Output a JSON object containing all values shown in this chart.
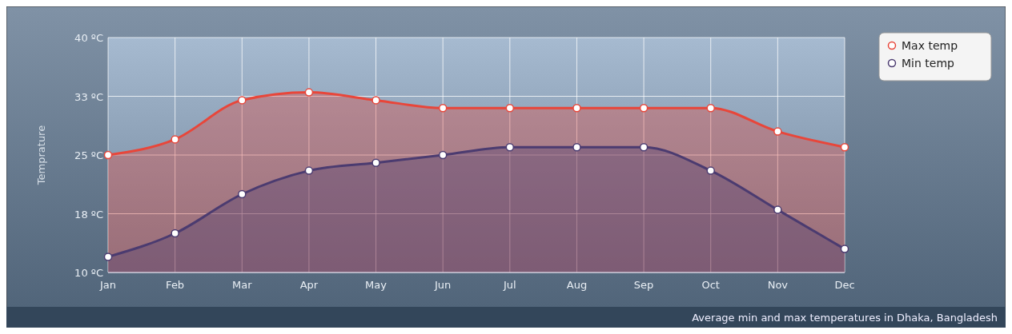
{
  "chart_data": {
    "type": "area",
    "ylabel": "Temprature",
    "categories": [
      "Jan",
      "Feb",
      "Mar",
      "Apr",
      "May",
      "Jun",
      "Jul",
      "Aug",
      "Sep",
      "Oct",
      "Nov",
      "Dec"
    ],
    "series": [
      {
        "name": "Max temp",
        "color": "#e8463a",
        "values": [
          25,
          27,
          32,
          33,
          32,
          31,
          31,
          31,
          31,
          31,
          28,
          26
        ]
      },
      {
        "name": "Min temp",
        "color": "#4b3b70",
        "values": [
          12,
          15,
          20,
          23,
          24,
          25,
          26,
          26,
          26,
          23,
          18,
          13
        ]
      }
    ],
    "ylim": [
      10,
      40
    ],
    "yticks": [
      {
        "value": 10,
        "label": "10 ºC"
      },
      {
        "value": 17.5,
        "label": "18 ºC"
      },
      {
        "value": 25,
        "label": "25 ºC"
      },
      {
        "value": 32.5,
        "label": "33 ºC"
      },
      {
        "value": 40,
        "label": "40 ºC"
      }
    ],
    "grid": true,
    "legend": "top right",
    "marker": "circle",
    "line_style": "solid",
    "annotations": [
      "Average min and max temperatures in Dhaka, Bangladesh"
    ]
  }
}
